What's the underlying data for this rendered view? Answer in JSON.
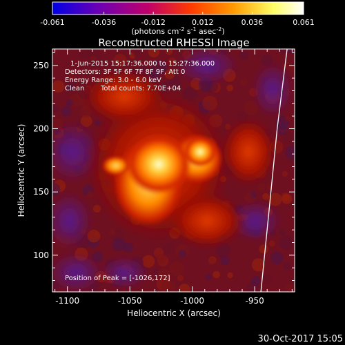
{
  "colorbar": {
    "min": -0.061,
    "max": 0.061,
    "tick_values": [
      -0.061,
      -0.036,
      -0.012,
      0.012,
      0.036,
      0.061
    ],
    "tick_labels": [
      "-0.061",
      "-0.036",
      "-0.012",
      "0.012",
      "0.036",
      "0.061"
    ],
    "units_text": "(photons cm",
    "units_exp1": "-2",
    "units_mid": " s",
    "units_exp2": "-1",
    "units_mid2": " asec",
    "units_exp3": "-2",
    "units_end": ")",
    "colors": [
      "#0000e6",
      "#6a00b5",
      "#c0006a",
      "#ff3a00",
      "#ff9a00",
      "#ffff66",
      "#ffffff"
    ]
  },
  "chart_data": {
    "type": "heatmap",
    "title": "Reconstructed RHESSI Image",
    "xlabel": "Heliocentric X (arcsec)",
    "ylabel": "Heliocentric Y (arcsec)",
    "xlim": [
      -1112,
      -918
    ],
    "ylim": [
      71,
      263
    ],
    "x_ticks": [
      -1100,
      -1050,
      -1000,
      -950
    ],
    "x_tick_labels": [
      "-1100",
      "-1050",
      "-1000",
      "-950"
    ],
    "y_ticks": [
      100,
      150,
      200,
      250
    ],
    "y_tick_labels": [
      "100",
      "150",
      "200",
      "250"
    ],
    "peak": {
      "x": -1026,
      "y": 172
    },
    "limb_line": [
      [
        -924,
        263
      ],
      [
        -932,
        200
      ],
      [
        -938,
        140
      ],
      [
        -945,
        71
      ]
    ],
    "annotations": {
      "time_range": "1-Jun-2015 15:17:36.000 to 15:27:36.000",
      "detectors": "Detectors: 3F 5F 6F 7F 8F 9F, Att 0",
      "energy": "Energy Range: 3.0 - 6.0 keV",
      "clean": "Clean",
      "total_counts": "Total counts: 7.70E+04",
      "peak_position": "Position of Peak = [-1026,172]"
    }
  },
  "footer": {
    "timestamp": "30-Oct-2017 15:05"
  }
}
